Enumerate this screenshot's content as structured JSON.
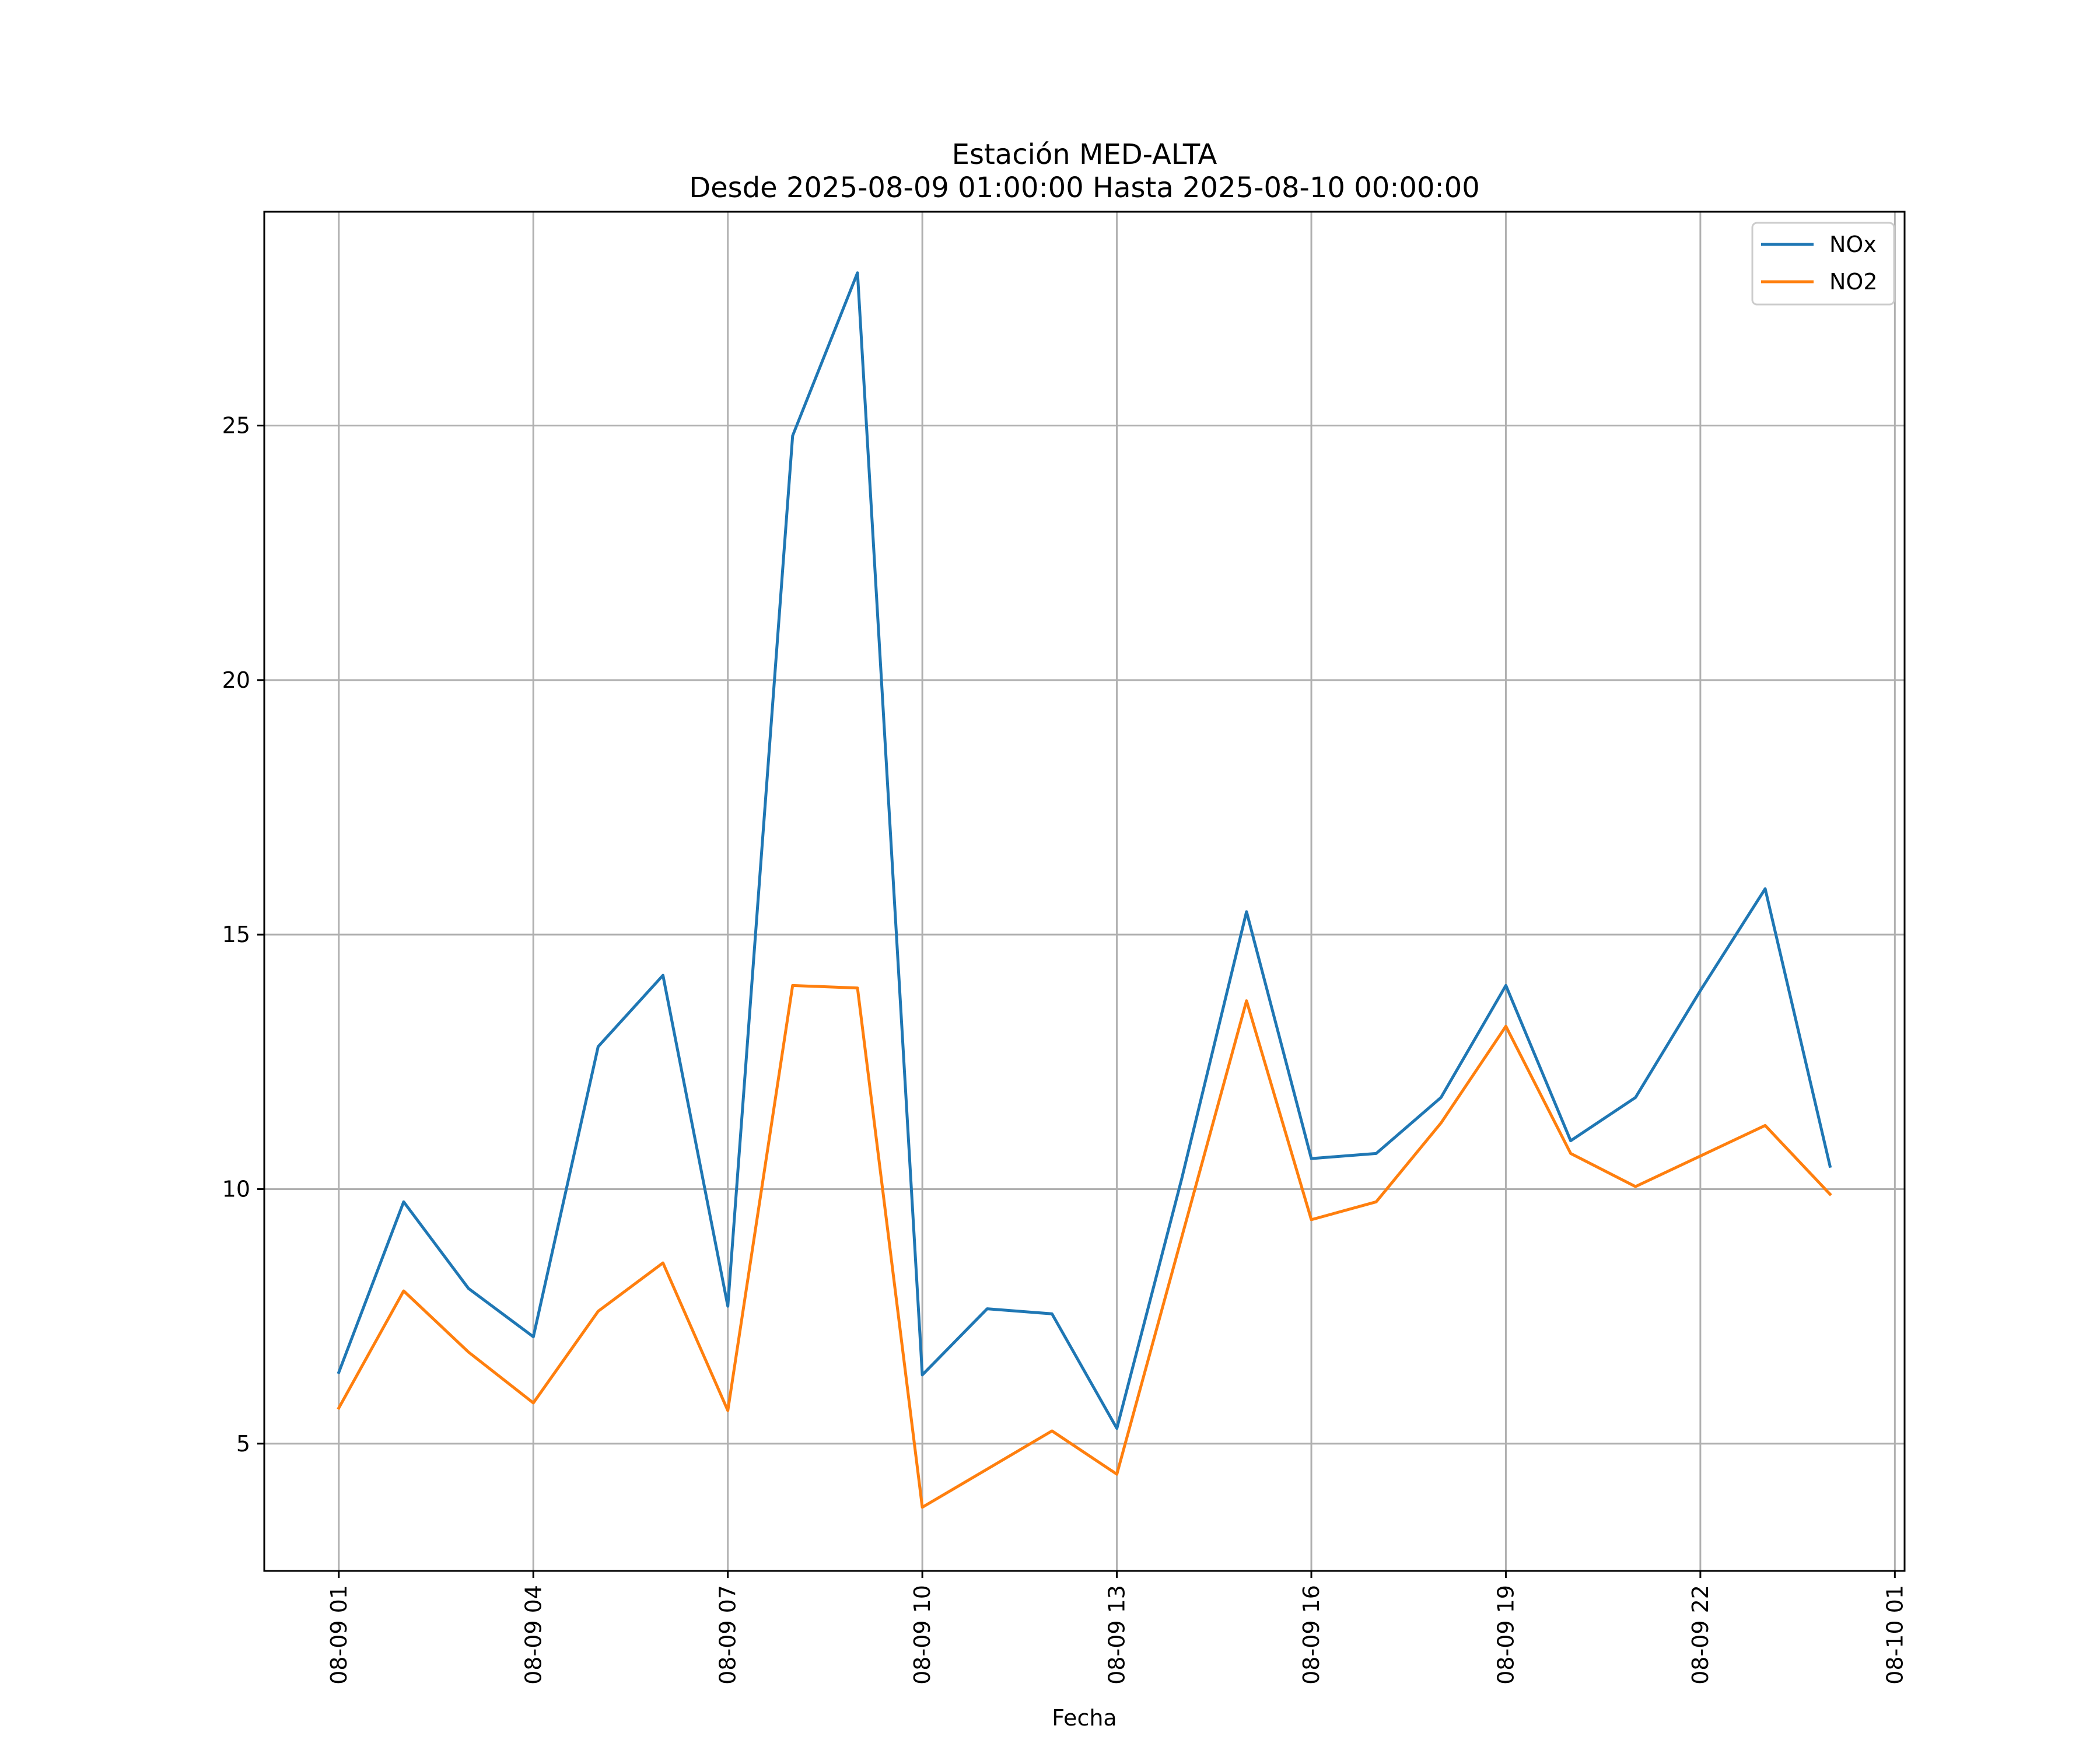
{
  "chart_data": {
    "type": "line",
    "title": "Estación MED-ALTA",
    "subtitle": "Desde 2025-08-09 01:00:00 Hasta 2025-08-10 00:00:00",
    "xlabel": "Fecha",
    "ylabel": "",
    "x": [
      "2025-08-09 01:00",
      "2025-08-09 02:00",
      "2025-08-09 03:00",
      "2025-08-09 04:00",
      "2025-08-09 05:00",
      "2025-08-09 06:00",
      "2025-08-09 07:00",
      "2025-08-09 08:00",
      "2025-08-09 09:00",
      "2025-08-09 10:00",
      "2025-08-09 11:00",
      "2025-08-09 12:00",
      "2025-08-09 13:00",
      "2025-08-09 14:00",
      "2025-08-09 15:00",
      "2025-08-09 16:00",
      "2025-08-09 17:00",
      "2025-08-09 18:00",
      "2025-08-09 19:00",
      "2025-08-09 20:00",
      "2025-08-09 21:00",
      "2025-08-09 22:00",
      "2025-08-09 23:00",
      "2025-08-10 00:00"
    ],
    "x_ticks": [
      {
        "label": "08-09 01",
        "value": "2025-08-09 01:00"
      },
      {
        "label": "08-09 04",
        "value": "2025-08-09 04:00"
      },
      {
        "label": "08-09 07",
        "value": "2025-08-09 07:00"
      },
      {
        "label": "08-09 10",
        "value": "2025-08-09 10:00"
      },
      {
        "label": "08-09 13",
        "value": "2025-08-09 13:00"
      },
      {
        "label": "08-09 16",
        "value": "2025-08-09 16:00"
      },
      {
        "label": "08-09 19",
        "value": "2025-08-09 19:00"
      },
      {
        "label": "08-09 22",
        "value": "2025-08-09 22:00"
      },
      {
        "label": "08-10 01",
        "value": "2025-08-10 01:00"
      }
    ],
    "xlim": [
      "2025-08-08 23:51",
      "2025-08-10 01:09"
    ],
    "y_ticks": [
      5,
      10,
      15,
      20,
      25
    ],
    "ylim": [
      2.5,
      29.2
    ],
    "grid": true,
    "legend_position": "top-right",
    "series": [
      {
        "name": "NOx",
        "color": "#1f77b4",
        "values": [
          6.4,
          9.75,
          8.05,
          7.1,
          12.8,
          14.2,
          7.7,
          24.8,
          28.0,
          6.35,
          7.65,
          7.55,
          5.3,
          10.2,
          15.45,
          10.6,
          10.7,
          11.8,
          14.0,
          10.95,
          11.8,
          13.9,
          15.9,
          10.45
        ]
      },
      {
        "name": "NO2",
        "color": "#ff7f0e",
        "values": [
          5.7,
          8.0,
          6.8,
          5.8,
          7.6,
          8.55,
          5.65,
          14.0,
          13.95,
          3.75,
          4.5,
          5.25,
          4.4,
          9.05,
          13.7,
          9.4,
          9.75,
          11.3,
          13.2,
          10.7,
          10.05,
          10.65,
          11.25,
          9.9
        ]
      }
    ]
  }
}
